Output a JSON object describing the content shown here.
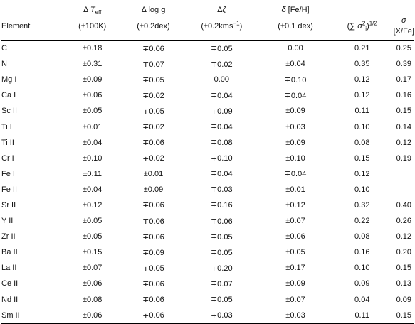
{
  "table": {
    "header": [
      {
        "line1": [],
        "line2": [
          {
            "text": "Element"
          }
        ]
      },
      {
        "line1": [
          {
            "text": "Δ "
          },
          {
            "text": "T",
            "style": "italic"
          },
          {
            "text": "eff",
            "style": "sub"
          }
        ],
        "line2": [
          {
            "text": "(±100K)"
          }
        ]
      },
      {
        "line1": [
          {
            "text": "Δ log g"
          }
        ],
        "line2": [
          {
            "text": "(±0.2dex)"
          }
        ]
      },
      {
        "line1": [
          {
            "text": "Δ"
          },
          {
            "text": "ζ",
            "style": "italic"
          }
        ],
        "line2": [
          {
            "text": "(±0.2kms"
          },
          {
            "text": "−1",
            "style": "sup"
          },
          {
            "text": ")"
          }
        ]
      },
      {
        "line1": [
          {
            "text": "δ",
            "style": "italic"
          },
          {
            "text": " [Fe/H]"
          }
        ],
        "line2": [
          {
            "text": "(±0.1 dex)"
          }
        ]
      },
      {
        "line1": [],
        "line2": [
          {
            "text": "(∑ "
          },
          {
            "text": "σ",
            "style": "italic"
          },
          {
            "text": "2",
            "style": "sup"
          },
          {
            "text": "i",
            "style": "sub"
          },
          {
            "text": ")"
          },
          {
            "text": "1/2",
            "style": "sup"
          }
        ]
      },
      {
        "line1": [],
        "line2": [
          {
            "text": "σ",
            "style": "italic"
          },
          {
            "text": " [X/Fe]"
          }
        ]
      }
    ],
    "rows": [
      [
        "C",
        "±0.18",
        "∓0.06",
        "∓0.05",
        "0.00",
        "0.21",
        "0.25"
      ],
      [
        "N",
        "±0.31",
        "∓0.07",
        "∓0.02",
        "±0.04",
        "0.35",
        "0.39"
      ],
      [
        "Mg I",
        "±0.09",
        "∓0.05",
        "0.00",
        "∓0.10",
        "0.12",
        "0.17"
      ],
      [
        "Ca I",
        "±0.06",
        "∓0.02",
        "∓0.04",
        "∓0.04",
        "0.12",
        "0.16"
      ],
      [
        "Sc II",
        "±0.05",
        "∓0.05",
        "∓0.09",
        "±0.09",
        "0.11",
        "0.15"
      ],
      [
        "Ti I",
        "±0.01",
        "∓0.02",
        "∓0.04",
        "±0.03",
        "0.10",
        "0.14"
      ],
      [
        "Ti II",
        "±0.04",
        "∓0.06",
        "∓0.08",
        "±0.09",
        "0.08",
        "0.12"
      ],
      [
        "Cr I",
        "±0.10",
        "∓0.02",
        "∓0.10",
        "±0.10",
        "0.15",
        "0.19"
      ],
      [
        "Fe I",
        "±0.11",
        "±0.01",
        "∓0.04",
        "∓0.04",
        "0.12",
        null
      ],
      [
        "Fe II",
        "±0.04",
        "±0.09",
        "∓0.03",
        "±0.01",
        "0.10",
        null
      ],
      [
        "Sr II",
        "±0.12",
        "∓0.06",
        "∓0.16",
        "±0.12",
        "0.32",
        "0.40"
      ],
      [
        "Y II",
        "±0.05",
        "∓0.06",
        "∓0.06",
        "±0.07",
        "0.22",
        "0.26"
      ],
      [
        "Zr II",
        "±0.05",
        "∓0.06",
        "∓0.05",
        "±0.06",
        "0.08",
        "0.12"
      ],
      [
        "Ba II",
        "±0.15",
        "∓0.09",
        "∓0.05",
        "±0.05",
        "0.16",
        "0.20"
      ],
      [
        "La II",
        "±0.07",
        "∓0.05",
        "∓0.20",
        "±0.17",
        "0.10",
        "0.15"
      ],
      [
        "Ce II",
        "±0.06",
        "∓0.06",
        "∓0.07",
        "±0.09",
        "0.09",
        "0.13"
      ],
      [
        "Nd II",
        "±0.08",
        "∓0.06",
        "∓0.05",
        "±0.07",
        "0.04",
        "0.09"
      ],
      [
        "Sm II",
        "±0.06",
        "∓0.06",
        "∓0.03",
        "±0.03",
        "0.11",
        "0.15"
      ]
    ]
  }
}
